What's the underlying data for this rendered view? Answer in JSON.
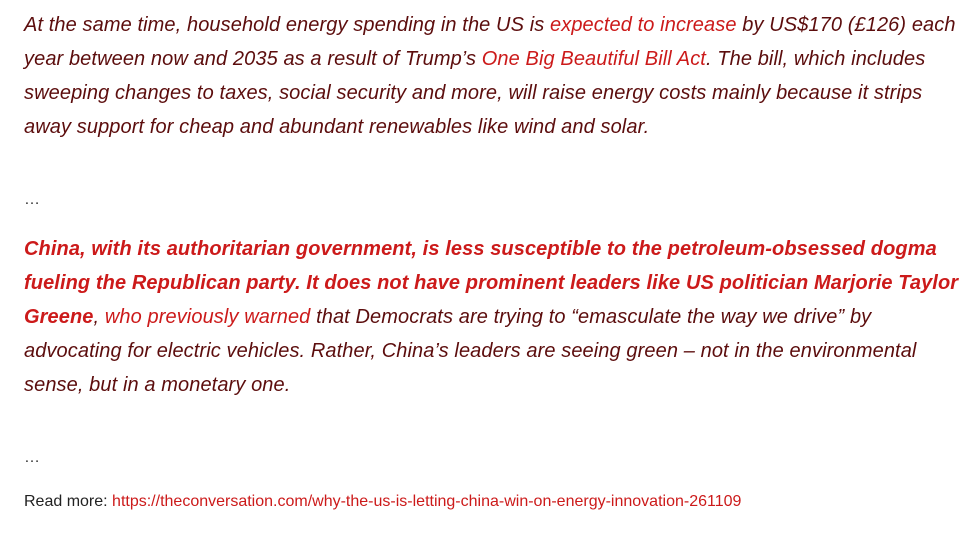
{
  "paragraph1": {
    "text_a": "At the same time, household energy spending in the US is ",
    "link1": "expected to increase",
    "text_b": " by US$170 (£126) each year between now and 2035 as a result of Trump’s ",
    "link2": "One Big Beautiful Bill Act",
    "text_c": ". The bill, which includes sweeping changes to taxes, social security and more, will raise energy costs mainly because it strips away support for cheap and abundant renewables like wind and solar."
  },
  "ellipsis1": "…",
  "paragraph2": {
    "bold": "China, with its authoritarian government, is less susceptible to the petroleum-obsessed dogma fueling the Republican party. It does not have prominent leaders like US politician Marjorie Taylor Greene",
    "comma": ", ",
    "link": "who previously warned",
    "text": " that Democrats are trying to “emasculate the way we drive” by advocating for electric vehicles. Rather, China’s leaders are seeing green – not in the environmental sense, but in a monetary one."
  },
  "ellipsis2": "…",
  "read_more": {
    "label": "Read more: ",
    "url": "https://theconversation.com/why-the-us-is-letting-china-win-on-energy-innovation-261109"
  },
  "colors": {
    "body_text": "#5c0d0d",
    "link": "#cc1a1a"
  }
}
